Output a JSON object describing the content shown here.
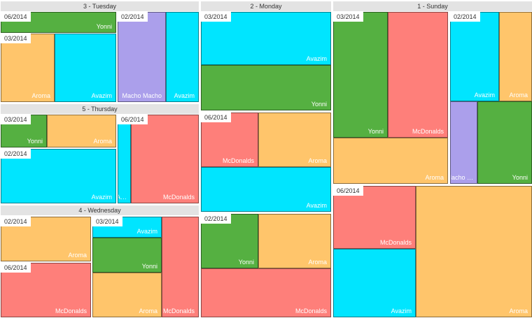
{
  "chart_data": {
    "type": "treemap",
    "value_labels": "none",
    "colors": {
      "Yonni": "#55b041",
      "Aroma": "#ffc56b",
      "Avazim": "#00e5ff",
      "Macho Macho": "#ab9feb",
      "McDonalds": "#fe7f7a"
    },
    "days": [
      {
        "name": "3 - Tuesday",
        "groups": [
          {
            "name": "06/2014",
            "items": [
              {
                "name": "Yonni"
              }
            ]
          },
          {
            "name": "03/2014",
            "items": [
              {
                "name": "Aroma"
              },
              {
                "name": "Avazim"
              }
            ]
          },
          {
            "name": "02/2014",
            "items": [
              {
                "name": "Macho Macho"
              },
              {
                "name": "Avazim"
              }
            ]
          }
        ]
      },
      {
        "name": "5 - Thursday",
        "groups": [
          {
            "name": "03/2014",
            "items": [
              {
                "name": "Yonni"
              },
              {
                "name": "Aroma"
              }
            ]
          },
          {
            "name": "02/2014",
            "items": [
              {
                "name": "Avazim"
              }
            ]
          },
          {
            "name": "06/2014",
            "items": [
              {
                "name": "Avazim",
                "label": "A…"
              },
              {
                "name": "McDonalds"
              }
            ]
          }
        ]
      },
      {
        "name": "4 - Wednesday",
        "groups": [
          {
            "name": "02/2014",
            "items": [
              {
                "name": "Aroma"
              }
            ]
          },
          {
            "name": "06/2014",
            "items": [
              {
                "name": "McDonalds"
              }
            ]
          },
          {
            "name": "03/2014",
            "items": [
              {
                "name": "Avazim"
              },
              {
                "name": "Yonni"
              },
              {
                "name": "Aroma"
              },
              {
                "name": "McDonalds"
              }
            ]
          }
        ]
      },
      {
        "name": "2 - Monday",
        "groups": [
          {
            "name": "03/2014",
            "items": [
              {
                "name": "Avazim"
              },
              {
                "name": "Yonni"
              }
            ]
          },
          {
            "name": "06/2014",
            "items": [
              {
                "name": "McDonalds"
              },
              {
                "name": "Aroma"
              },
              {
                "name": "Avazim"
              }
            ]
          },
          {
            "name": "02/2014",
            "items": [
              {
                "name": "Yonni"
              },
              {
                "name": "Aroma"
              },
              {
                "name": "McDonalds"
              }
            ]
          }
        ]
      },
      {
        "name": "1 - Sunday",
        "groups": [
          {
            "name": "03/2014",
            "items": [
              {
                "name": "Yonni"
              },
              {
                "name": "McDonalds"
              },
              {
                "name": "Aroma"
              }
            ]
          },
          {
            "name": "02/2014",
            "items": [
              {
                "name": "Avazim"
              },
              {
                "name": "Aroma"
              },
              {
                "name": "Macho Macho",
                "label": "Macho …"
              },
              {
                "name": "Yonni"
              }
            ]
          },
          {
            "name": "06/2014",
            "items": [
              {
                "name": "McDonalds"
              },
              {
                "name": "Avazim"
              },
              {
                "name": "Aroma"
              }
            ]
          }
        ]
      }
    ]
  }
}
